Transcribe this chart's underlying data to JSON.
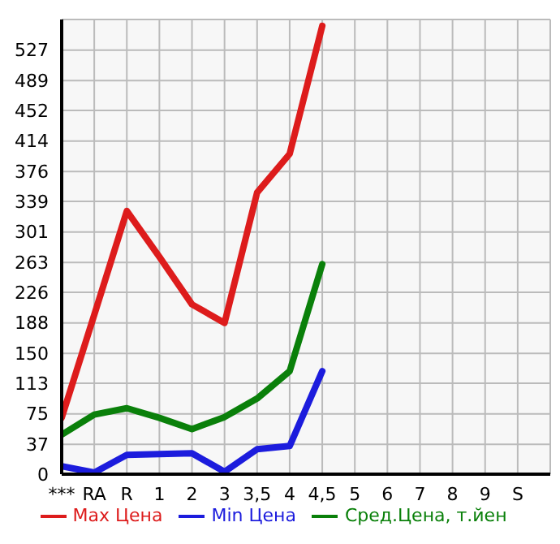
{
  "chart_data": {
    "type": "line",
    "categories": [
      "***",
      "RA",
      "R",
      "1",
      "2",
      "3",
      "3,5",
      "4",
      "4,5",
      "5",
      "6",
      "7",
      "8",
      "9",
      "S"
    ],
    "series": [
      {
        "name": "Max Цена",
        "color": "#dd1c1c",
        "values": [
          70,
          198,
          327,
          270,
          211,
          188,
          350,
          398,
          557,
          null,
          null,
          null,
          null,
          null,
          null
        ]
      },
      {
        "name": "Min Цена",
        "color": "#1c1cdd",
        "values": [
          10,
          2,
          24,
          25,
          26,
          3,
          31,
          35,
          128,
          null,
          null,
          null,
          null,
          null,
          null
        ]
      },
      {
        "name": "Сред.Цена, т.йен",
        "color": "#0a800a",
        "values": [
          49,
          74,
          82,
          70,
          56,
          71,
          94,
          128,
          261,
          null,
          null,
          null,
          null,
          null,
          null
        ]
      }
    ],
    "ylim": [
      0,
      565
    ],
    "yticks": [
      0,
      37,
      75,
      113,
      150,
      188,
      226,
      263,
      301,
      339,
      376,
      414,
      452,
      489,
      527
    ],
    "grid": true,
    "legend": "bottom",
    "marker": "none",
    "line_style": "solid"
  }
}
